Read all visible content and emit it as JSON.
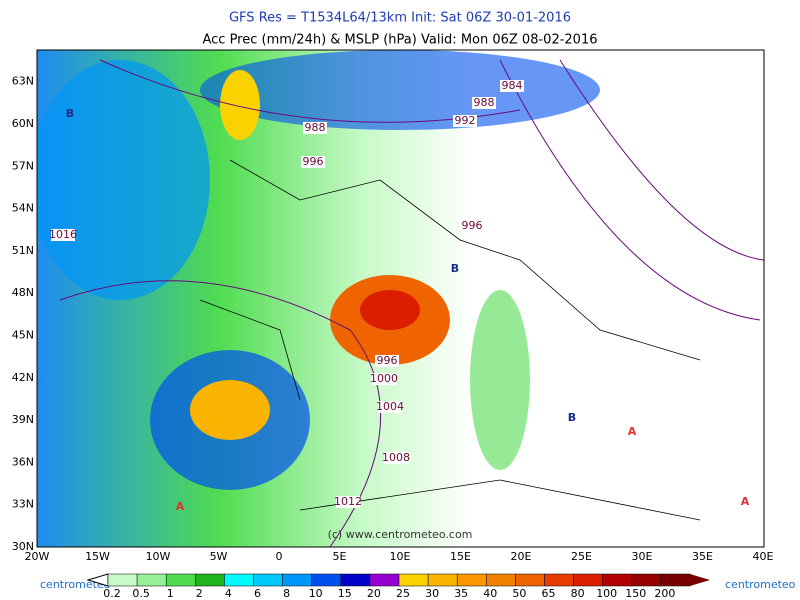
{
  "header": {
    "title": "GFS Res = T1534L64/13km   Init: Sat 06Z 30-01-2016",
    "subtitle": "Acc Prec (mm/24h) & MSLP (hPa)  Valid: Mon 06Z 08-02-2016"
  },
  "map": {
    "lon_labels": [
      "20W",
      "15W",
      "10W",
      "5W",
      "0",
      "5E",
      "10E",
      "15E",
      "20E",
      "25E",
      "30E",
      "35E",
      "40E"
    ],
    "lat_labels": [
      "30N",
      "33N",
      "36N",
      "39N",
      "42N",
      "45N",
      "48N",
      "51N",
      "54N",
      "57N",
      "60N",
      "63N"
    ],
    "isobars": [
      "984",
      "988",
      "988",
      "992",
      "996",
      "996",
      "1016",
      "996",
      "1000",
      "1004",
      "1008",
      "1012"
    ],
    "centers": [
      "B",
      "B",
      "B",
      "A",
      "A",
      "A"
    ],
    "watermark": "(c) www.centrometeo.com"
  },
  "legend": {
    "labels": [
      "0.2",
      "0.5",
      "1",
      "2",
      "4",
      "6",
      "8",
      "10",
      "15",
      "20",
      "25",
      "30",
      "35",
      "40",
      "50",
      "65",
      "80",
      "100",
      "150",
      "200"
    ],
    "colors": [
      "#c8fac8",
      "#96f096",
      "#50dc50",
      "#1eb41e",
      "#00fafa",
      "#00c8fa",
      "#0096fa",
      "#0050f0",
      "#0000c8",
      "#9600d2",
      "#fad200",
      "#fab400",
      "#fa9600",
      "#f08200",
      "#f06400",
      "#e63c00",
      "#dc1e00",
      "#b40000",
      "#960000",
      "#780000"
    ],
    "brand_left": "centrometeo",
    "brand_right": "centrometeo"
  }
}
